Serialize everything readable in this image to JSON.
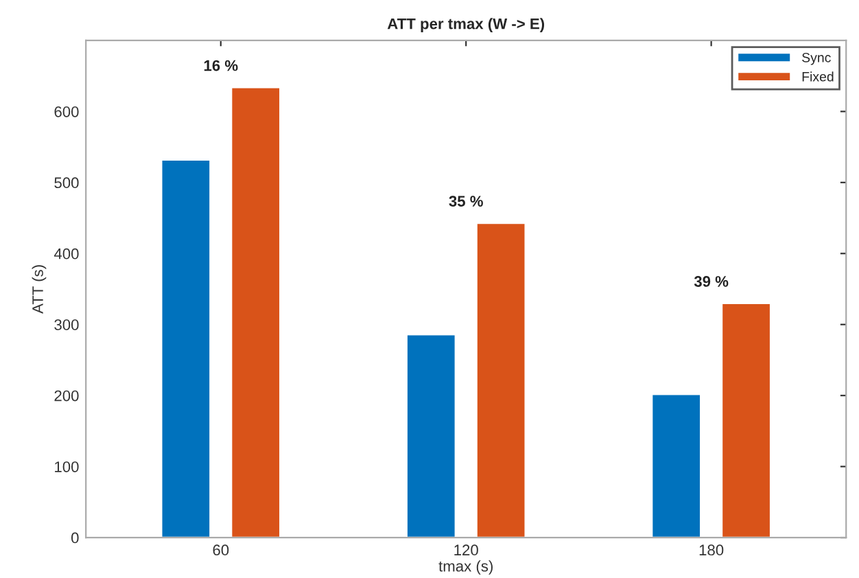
{
  "chart_data": {
    "type": "bar",
    "title": "ATT per tmax (W -> E)",
    "xlabel": "tmax (s)",
    "ylabel": "ATT (s)",
    "categories": [
      "60",
      "120",
      "180"
    ],
    "series": [
      {
        "name": "Sync",
        "color": "#0072bd",
        "values": [
          532,
          286,
          202
        ]
      },
      {
        "name": "Fixed",
        "color": "#d95319",
        "values": [
          634,
          443,
          330
        ]
      }
    ],
    "annotations": [
      "16 %",
      "35 %",
      "39 %"
    ],
    "ylim": [
      0,
      700
    ],
    "yticks": [
      0,
      100,
      200,
      300,
      400,
      500,
      600
    ],
    "grid": false,
    "legend": "top right"
  }
}
